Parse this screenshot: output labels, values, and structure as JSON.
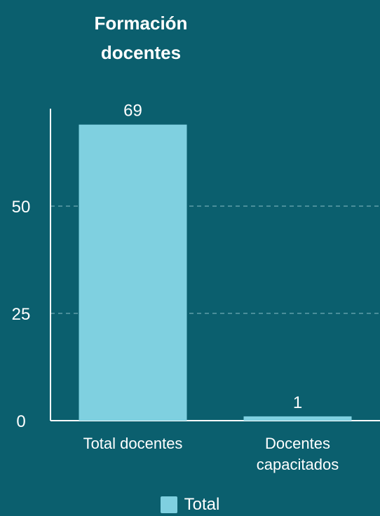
{
  "colors": {
    "background": "#0b5f6e",
    "bar": "#7fd0e0",
    "text": "#ffffff",
    "grid": "#5f9ea9"
  },
  "chart_data": {
    "type": "bar",
    "title": "Formación\ndocentes",
    "categories": [
      "Total docentes",
      "Docentes capacitados"
    ],
    "category_lines": [
      [
        "Total docentes"
      ],
      [
        "Docentes",
        "capacitados"
      ]
    ],
    "series": [
      {
        "name": "Total",
        "values": [
          69,
          1
        ]
      }
    ],
    "data_labels": [
      "69",
      "1"
    ],
    "xlabel": "",
    "ylabel": "",
    "ylim": [
      0,
      80
    ],
    "yticks": [
      0,
      25,
      50
    ],
    "grid": true,
    "legend_position": "bottom"
  }
}
